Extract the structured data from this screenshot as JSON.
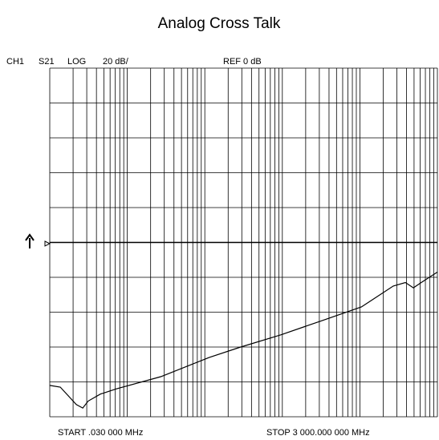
{
  "chart_data": {
    "type": "line",
    "title": "Analog Cross Talk",
    "header": [
      "CH1",
      "S21",
      "LOG",
      "20 dB/",
      "REF 0 dB"
    ],
    "start_label": "START  .030 000 MHz",
    "stop_label": "STOP  3 000.000 000 MHz",
    "log_x": true,
    "xlim": [
      0.03,
      3000
    ],
    "xticks": [
      0.03,
      0.06,
      0.09,
      0.12,
      0.15,
      0.18,
      0.21,
      0.24,
      0.27,
      0.3,
      0.6,
      0.9,
      1.2,
      1.5,
      1.8,
      2.1,
      2.4,
      2.7,
      3,
      6,
      9,
      12,
      15,
      18,
      21,
      24,
      27,
      30,
      60,
      90,
      120,
      150,
      180,
      210,
      240,
      270,
      300,
      600,
      900,
      1200,
      1500,
      1800,
      2100,
      2400,
      2700,
      3000
    ],
    "ylim": [
      -100,
      100
    ],
    "yticks": [
      -100,
      -80,
      -60,
      -40,
      -20,
      0,
      20,
      40,
      60,
      80,
      100
    ],
    "reference": 0,
    "grid": true,
    "series": [
      {
        "name": "S21",
        "color": "#000000",
        "x": [
          0.03,
          0.041,
          0.052,
          0.066,
          0.08,
          0.094,
          0.135,
          0.217,
          0.81,
          3.4,
          8.7,
          28.7,
          95,
          314,
          808,
          1160,
          1470,
          1860,
          2360,
          3000
        ],
        "values": [
          -82,
          -83,
          -88,
          -93,
          -95,
          -91,
          -87,
          -84,
          -77,
          -66,
          -60,
          -53,
          -45,
          -37,
          -25,
          -23,
          -26,
          -23,
          -20,
          -17
        ]
      }
    ]
  }
}
